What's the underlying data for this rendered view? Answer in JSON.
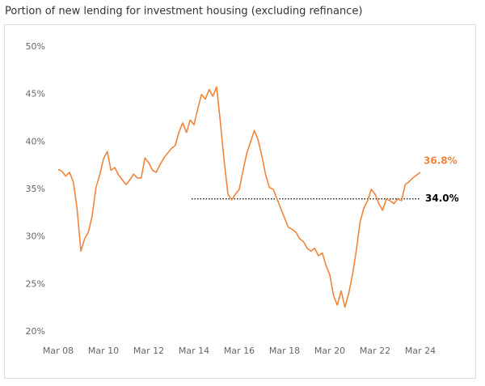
{
  "chart_data": {
    "type": "line",
    "title": "Portion of new lending for investment housing (excluding  refinance)",
    "categories": [
      "Mar 08",
      null,
      null,
      null,
      null,
      null,
      null,
      null,
      null,
      null,
      null,
      null,
      "Mar 10",
      null,
      null,
      null,
      null,
      null,
      null,
      null,
      null,
      null,
      null,
      null,
      "Mar 12",
      null,
      null,
      null,
      null,
      null,
      null,
      null,
      null,
      null,
      null,
      null,
      "Mar 14",
      null,
      null,
      null,
      null,
      null,
      null,
      null,
      null,
      null,
      null,
      null,
      "Mar 16",
      null,
      null,
      null,
      null,
      null,
      null,
      null,
      null,
      null,
      null,
      null,
      "Mar 18",
      null,
      null,
      null,
      null,
      null,
      null,
      null,
      null,
      null,
      null,
      null,
      "Mar 20",
      null,
      null,
      null,
      null,
      null,
      null,
      null,
      null,
      null,
      null,
      null,
      "Mar 22",
      null,
      null,
      null,
      null,
      null,
      null,
      null,
      null,
      null,
      null,
      null,
      "Mar 24"
    ],
    "series": [
      {
        "color": "#f0843a",
        "values": [
          37.1,
          36.9,
          36.4,
          36.8,
          35.8,
          33.0,
          28.5,
          29.8,
          30.5,
          32.2,
          35.2,
          36.5,
          38.2,
          39.0,
          37.0,
          37.3,
          36.5,
          36.0,
          35.5,
          36.0,
          36.6,
          36.2,
          36.2,
          38.3,
          37.8,
          37.0,
          36.8,
          37.6,
          38.3,
          38.8,
          39.3,
          39.6,
          41.0,
          42.0,
          41.0,
          42.3,
          41.8,
          43.5,
          45.0,
          44.5,
          45.5,
          44.8,
          45.8,
          42.0,
          38.0,
          34.5,
          33.9,
          34.5,
          35.0,
          37.0,
          38.8,
          40.0,
          41.2,
          40.2,
          38.5,
          36.5,
          35.2,
          35.0,
          34.0,
          33.0,
          32.0,
          31.0,
          30.8,
          30.5,
          29.8,
          29.5,
          28.8,
          28.5,
          28.8,
          28.0,
          28.3,
          27.0,
          26.0,
          23.8,
          22.8,
          24.3,
          22.6,
          24.0,
          26.0,
          28.5,
          31.5,
          33.0,
          33.8,
          35.0,
          34.5,
          33.5,
          32.8,
          34.0,
          33.8,
          33.5,
          34.0,
          33.8,
          35.5,
          35.8,
          36.2,
          36.5,
          36.8
        ],
        "value_labels": [
          null,
          null,
          null,
          null,
          null,
          null,
          null,
          null,
          null,
          null,
          null,
          null,
          null,
          null,
          null,
          null,
          null,
          null,
          null,
          null,
          null,
          null,
          null,
          null,
          null,
          null,
          null,
          null,
          null,
          null,
          null,
          null,
          null,
          null,
          null,
          null,
          null,
          null,
          null,
          null,
          null,
          null,
          null,
          null,
          null,
          null,
          null,
          null,
          null,
          null,
          null,
          null,
          null,
          null,
          null,
          null,
          null,
          null,
          null,
          null,
          null,
          null,
          null,
          null,
          null,
          null,
          null,
          null,
          null,
          null,
          null,
          null,
          null,
          null,
          null,
          null,
          null,
          null,
          null,
          null,
          null,
          null,
          null,
          null,
          null,
          null,
          null,
          null,
          null,
          null,
          null,
          null,
          null,
          null,
          null,
          null,
          "36.8%"
        ]
      }
    ],
    "reference_line": {
      "value": 34.0,
      "label": "34.0%",
      "color": "#000000"
    },
    "ylim": [
      20,
      50
    ],
    "yticks": [
      {
        "value": 20,
        "label": "20%"
      },
      {
        "value": 25,
        "label": "25%"
      },
      {
        "value": 30,
        "label": "30%"
      },
      {
        "value": 35,
        "label": "35%"
      },
      {
        "value": 40,
        "label": "40%"
      },
      {
        "value": 45,
        "label": "45%"
      },
      {
        "value": 50,
        "label": "50%"
      }
    ],
    "grid": false
  }
}
